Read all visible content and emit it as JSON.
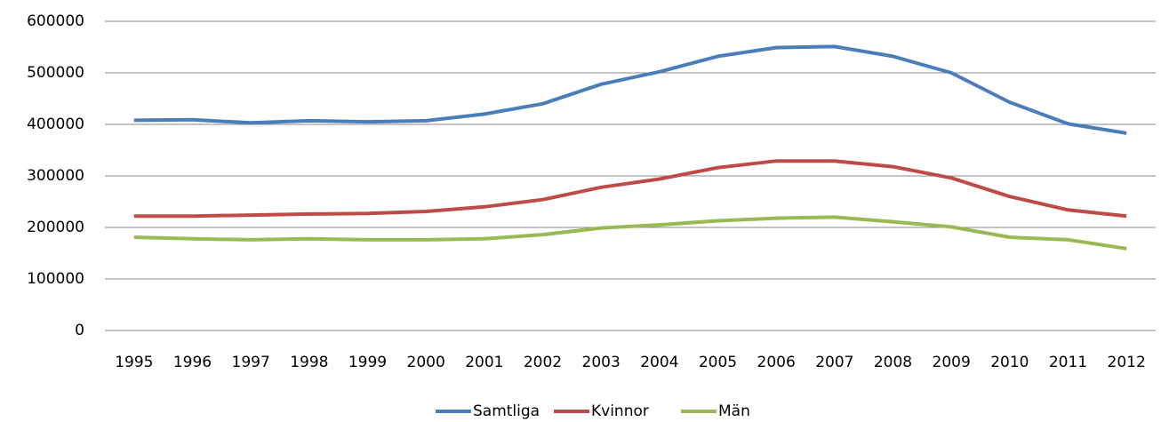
{
  "chart_data": {
    "type": "line",
    "categories": [
      "1995",
      "1996",
      "1997",
      "1998",
      "1999",
      "2000",
      "2001",
      "2002",
      "2003",
      "2004",
      "2005",
      "2006",
      "2007",
      "2008",
      "2009",
      "2010",
      "2011",
      "2012"
    ],
    "series": [
      {
        "name": "Samtliga",
        "color": "#4a7ebb",
        "values": [
          408000,
          409000,
          403000,
          407000,
          405000,
          407000,
          420000,
          440000,
          478000,
          502000,
          532000,
          549000,
          551000,
          532000,
          500000,
          443000,
          401000,
          383000
        ]
      },
      {
        "name": "Kvinnor",
        "color": "#be4b48",
        "values": [
          222000,
          222000,
          224000,
          226000,
          227000,
          231000,
          240000,
          254000,
          278000,
          294000,
          316000,
          329000,
          329000,
          318000,
          296000,
          260000,
          234000,
          222000
        ]
      },
      {
        "name": "Män",
        "color": "#98b954",
        "values": [
          181000,
          178000,
          176000,
          178000,
          176000,
          176000,
          178000,
          186000,
          199000,
          205000,
          213000,
          218000,
          220000,
          211000,
          201000,
          181000,
          176000,
          159000
        ]
      }
    ],
    "ylim": [
      0,
      600000
    ],
    "yticks": [
      0,
      100000,
      200000,
      300000,
      400000,
      500000,
      600000
    ],
    "grid": true,
    "legend": "bottom"
  }
}
